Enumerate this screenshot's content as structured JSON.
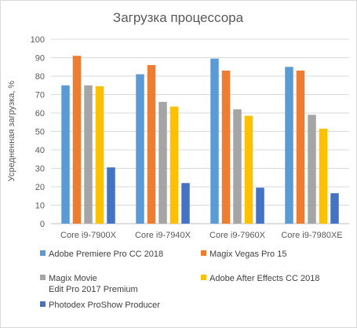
{
  "chart_data": {
    "type": "bar",
    "title": "Загрузка процессора",
    "ylabel": "Усредненная загрузка, %",
    "xlabel": "",
    "ylim": [
      0,
      100
    ],
    "yticks": [
      0,
      10,
      20,
      30,
      40,
      50,
      60,
      70,
      80,
      90,
      100
    ],
    "grid": true,
    "legend_position": "bottom",
    "categories": [
      "Core i9-7900X",
      "Core i9-7940X",
      "Core i9-7960X",
      "Core i9-7980XE"
    ],
    "series": [
      {
        "name": "Adobe Premiere Pro CC 2018",
        "name_lines": [
          "Adobe Premiere Pro CC 2018"
        ],
        "color": "#5b9bd5",
        "values": [
          75,
          81,
          89.5,
          85
        ]
      },
      {
        "name": "Magix Vegas Pro 15",
        "name_lines": [
          "Magix Vegas Pro 15"
        ],
        "color": "#ed7d31",
        "values": [
          91,
          86,
          83,
          83
        ]
      },
      {
        "name": "Magix Movie Edit Pro 2017 Premium",
        "name_lines": [
          "Magix Movie",
          "Edit Pro 2017  Premium"
        ],
        "color": "#a5a5a5",
        "values": [
          75,
          66,
          62,
          59
        ]
      },
      {
        "name": "Adobe After Effects CC 2018",
        "name_lines": [
          "Adobe After Effects CC 2018"
        ],
        "color": "#ffc000",
        "values": [
          74.5,
          63.5,
          58.5,
          51.5
        ]
      },
      {
        "name": "Photodex ProShow Producer",
        "name_lines": [
          "Photodex ProShow Producer"
        ],
        "color": "#4472c4",
        "values": [
          30.5,
          22,
          19.5,
          16.5
        ]
      }
    ]
  }
}
